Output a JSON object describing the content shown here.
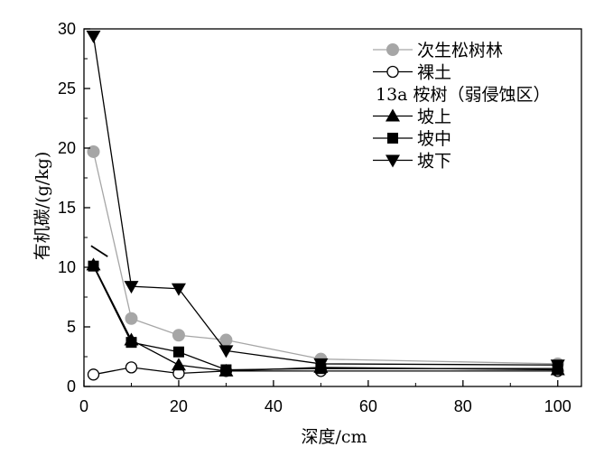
{
  "chart_data": {
    "type": "line",
    "title": "",
    "xlabel": "深度/cm",
    "ylabel": "有机碳/(g/kg)",
    "xlim": [
      0,
      105
    ],
    "ylim": [
      0,
      30
    ],
    "xticks": [
      0,
      20,
      40,
      60,
      80,
      100
    ],
    "yticks": [
      0,
      5,
      10,
      15,
      20,
      25,
      30
    ],
    "grid": false,
    "legend_position": "top-right",
    "legend_heading": "13a 桉树（弱侵蚀区）",
    "series": [
      {
        "name": "次生松树林",
        "marker": "circle-filled",
        "color": "#a6a6a6",
        "x": [
          2,
          10,
          20,
          30,
          50,
          100
        ],
        "y": [
          19.7,
          5.7,
          4.3,
          3.9,
          2.3,
          1.9
        ]
      },
      {
        "name": "裸土",
        "marker": "circle-open",
        "color": "#000000",
        "x": [
          2,
          10,
          20,
          30,
          50,
          100
        ],
        "y": [
          1.0,
          1.6,
          1.1,
          1.3,
          1.3,
          1.3
        ]
      },
      {
        "name": "坡上",
        "marker": "triangle-up",
        "color": "#000000",
        "x": [
          2,
          10,
          20,
          30,
          50,
          100
        ],
        "y": [
          10.2,
          3.9,
          1.8,
          1.3,
          1.6,
          1.4
        ]
      },
      {
        "name": "坡中",
        "marker": "square",
        "color": "#000000",
        "x": [
          2,
          10,
          20,
          30,
          50,
          100
        ],
        "y": [
          10.1,
          3.7,
          2.9,
          1.4,
          1.5,
          1.5
        ]
      },
      {
        "name": "坡下",
        "marker": "triangle-down",
        "color": "#000000",
        "x": [
          2,
          10,
          20,
          30,
          50,
          100
        ],
        "y": [
          29.4,
          8.4,
          8.2,
          3.0,
          1.9,
          1.8
        ]
      }
    ],
    "marks": [
      {
        "x": [
          1.5,
          5.0
        ],
        "y": [
          11.8,
          10.9
        ],
        "color": "#000000"
      }
    ]
  }
}
